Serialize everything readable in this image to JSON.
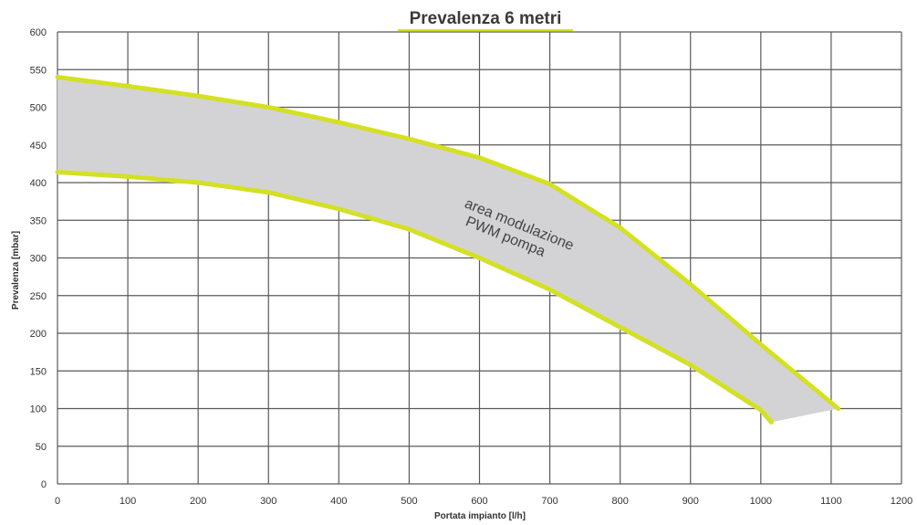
{
  "chart_data": {
    "type": "area",
    "title": "Prevalenza 6 metri",
    "xlabel": "Portata impianto [l/h]",
    "ylabel": "Prevalenza [mbar]",
    "xlim": [
      0,
      1200
    ],
    "ylim": [
      0,
      600
    ],
    "x_ticks": [
      0,
      100,
      200,
      300,
      400,
      500,
      600,
      700,
      800,
      900,
      1000,
      1100,
      1200
    ],
    "y_ticks": [
      0,
      50,
      100,
      150,
      200,
      250,
      300,
      350,
      400,
      450,
      500,
      550,
      600
    ],
    "grid": true,
    "series": [
      {
        "name": "",
        "x": [
          0,
          100,
          200,
          300,
          400,
          500,
          600,
          700,
          800,
          900,
          1000,
          1110
        ],
        "values": [
          540,
          528,
          515,
          500,
          480,
          458,
          433,
          398,
          340,
          265,
          185,
          100
        ]
      },
      {
        "name": "",
        "x": [
          0,
          100,
          200,
          300,
          400,
          500,
          600,
          700,
          800,
          900,
          1000,
          1015
        ],
        "values": [
          414,
          408,
          400,
          387,
          365,
          338,
          300,
          258,
          208,
          158,
          98,
          82
        ]
      }
    ],
    "fill_between": true,
    "annotation": "area modulazione\nPWM pompa",
    "annotation_line1": "area modulazione",
    "annotation_line2": "PWM pompa",
    "colors": {
      "line": "#d4e024",
      "fill": "#d3d3d6",
      "grid": "#5a5a5a",
      "background": "#ffffff"
    }
  }
}
